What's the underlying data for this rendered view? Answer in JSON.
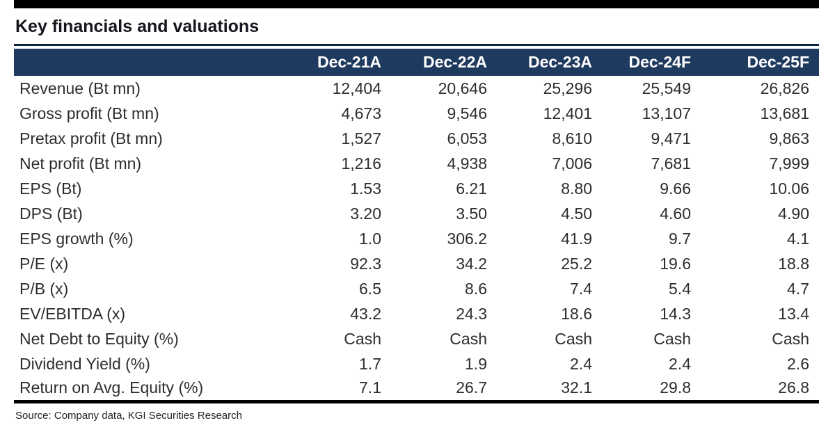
{
  "page": {
    "title": "Key financials and valuations",
    "source": "Source: Company data, KGI Securities Research"
  },
  "colors": {
    "header_bg": "#1f3a5f",
    "top_bar": "#000000",
    "rule": "#0e2440",
    "body_text": "#2d2d2d"
  },
  "table": {
    "columns": [
      "Dec-21A",
      "Dec-22A",
      "Dec-23A",
      "Dec-24F",
      "Dec-25F"
    ],
    "rows": [
      {
        "label": "Revenue (Bt mn)",
        "values": [
          "12,404",
          "20,646",
          "25,296",
          "25,549",
          "26,826"
        ]
      },
      {
        "label": "Gross profit (Bt mn)",
        "values": [
          "4,673",
          "9,546",
          "12,401",
          "13,107",
          "13,681"
        ]
      },
      {
        "label": "Pretax profit (Bt mn)",
        "values": [
          "1,527",
          "6,053",
          "8,610",
          "9,471",
          "9,863"
        ]
      },
      {
        "label": "Net profit (Bt mn)",
        "values": [
          "1,216",
          "4,938",
          "7,006",
          "7,681",
          "7,999"
        ]
      },
      {
        "label": "EPS (Bt)",
        "values": [
          "1.53",
          "6.21",
          "8.80",
          "9.66",
          "10.06"
        ]
      },
      {
        "label": "DPS (Bt)",
        "values": [
          "3.20",
          "3.50",
          "4.50",
          "4.60",
          "4.90"
        ]
      },
      {
        "label": "EPS growth (%)",
        "values": [
          "1.0",
          "306.2",
          "41.9",
          "9.7",
          "4.1"
        ]
      },
      {
        "label": "P/E (x)",
        "values": [
          "92.3",
          "34.2",
          "25.2",
          "19.6",
          "18.8"
        ]
      },
      {
        "label": "P/B (x)",
        "values": [
          "6.5",
          "8.6",
          "7.4",
          "5.4",
          "4.7"
        ]
      },
      {
        "label": "EV/EBITDA (x)",
        "values": [
          "43.2",
          "24.3",
          "18.6",
          "14.3",
          "13.4"
        ]
      },
      {
        "label": "Net Debt to Equity (%)",
        "values": [
          "Cash",
          "Cash",
          "Cash",
          "Cash",
          "Cash"
        ]
      },
      {
        "label": "Dividend Yield (%)",
        "values": [
          "1.7",
          "1.9",
          "2.4",
          "2.4",
          "2.6"
        ]
      },
      {
        "label": "Return on Avg. Equity (%)",
        "values": [
          "7.1",
          "26.7",
          "32.1",
          "29.8",
          "26.8"
        ]
      }
    ]
  }
}
